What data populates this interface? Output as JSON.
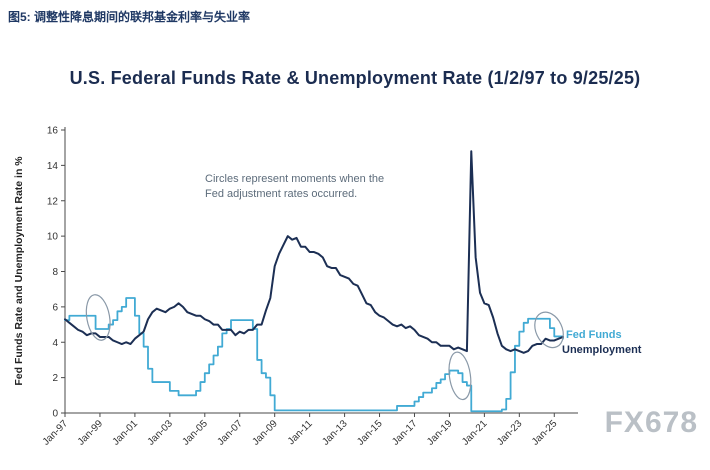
{
  "page": {
    "figure_label": "图5: 调整性降息期间的联邦基金利率与失业率",
    "watermark": "FX678"
  },
  "colors": {
    "figure_label": "#1F3864",
    "title": "#1B2C50",
    "watermark": "#A9B1B9",
    "axis": "#4A4A4A",
    "annotation_gray": "#5D6C7B",
    "circle_outline": "#8A99A8",
    "fed_funds_cyan": "#41AAD4",
    "unemployment_navy": "#1C2F54"
  },
  "chart_data": {
    "type": "line",
    "title": "U.S. Federal Funds Rate & Unemployment Rate (1/2/97 to 9/25/25)",
    "ylabel": "Fed Funds Rate and Unemployment Rate in %",
    "ylim": [
      0,
      16
    ],
    "yticks": [
      0,
      2,
      4,
      6,
      8,
      10,
      12,
      14,
      16
    ],
    "x_range": [
      1997.0,
      2025.9
    ],
    "x_start": 1997.0,
    "x_step": 0.25,
    "grid": false,
    "axis_color": "#4A4A4A",
    "circle_color": "#8A99A8",
    "xtick_years": [
      1997,
      1999,
      2001,
      2003,
      2005,
      2007,
      2009,
      2011,
      2013,
      2015,
      2017,
      2019,
      2021,
      2023,
      2025
    ],
    "xtick_labels": [
      "Jan-97",
      "Jan-99",
      "Jan-01",
      "Jan-03",
      "Jan-05",
      "Jan-07",
      "Jan-09",
      "Jan-11",
      "Jan-13",
      "Jan-15",
      "Jan-17",
      "Jan-19",
      "Jan-21",
      "Jan-23",
      "Jan-25"
    ],
    "annotation_lines": [
      "Circles represent moments when the",
      "Fed adjustment rates occurred."
    ],
    "legend_position": "right of line ends",
    "series": [
      {
        "name": "Fed Funds",
        "color": "#41AAD4",
        "step": true,
        "width": 1.8,
        "values": [
          5.25,
          5.5,
          5.5,
          5.5,
          5.5,
          5.5,
          5.5,
          4.75,
          4.75,
          4.75,
          5.0,
          5.25,
          5.75,
          6.0,
          6.5,
          6.5,
          5.5,
          4.5,
          3.75,
          2.5,
          1.75,
          1.75,
          1.75,
          1.75,
          1.25,
          1.25,
          1.0,
          1.0,
          1.0,
          1.0,
          1.25,
          1.75,
          2.25,
          2.75,
          3.25,
          3.75,
          4.5,
          4.75,
          5.25,
          5.25,
          5.25,
          5.25,
          5.25,
          4.75,
          3.0,
          2.25,
          2.0,
          1.0,
          0.15,
          0.15,
          0.15,
          0.15,
          0.15,
          0.15,
          0.15,
          0.15,
          0.15,
          0.15,
          0.15,
          0.15,
          0.15,
          0.15,
          0.15,
          0.15,
          0.15,
          0.15,
          0.15,
          0.15,
          0.15,
          0.15,
          0.15,
          0.15,
          0.15,
          0.15,
          0.15,
          0.15,
          0.4,
          0.4,
          0.4,
          0.4,
          0.65,
          0.9,
          1.15,
          1.15,
          1.4,
          1.7,
          1.9,
          2.2,
          2.4,
          2.4,
          2.25,
          1.75,
          1.55,
          0.1,
          0.1,
          0.1,
          0.1,
          0.1,
          0.1,
          0.1,
          0.2,
          0.8,
          2.3,
          3.8,
          4.6,
          5.1,
          5.33,
          5.33,
          5.33,
          5.33,
          5.33,
          4.8,
          4.33,
          4.33,
          4.2
        ]
      },
      {
        "name": "Unemployment",
        "color": "#1C2F54",
        "step": false,
        "width": 2.0,
        "values": [
          5.3,
          5.1,
          4.9,
          4.7,
          4.6,
          4.4,
          4.5,
          4.5,
          4.3,
          4.3,
          4.3,
          4.1,
          4.0,
          3.9,
          4.0,
          3.9,
          4.2,
          4.4,
          4.6,
          5.3,
          5.7,
          5.9,
          5.8,
          5.7,
          5.9,
          6.0,
          6.2,
          6.0,
          5.7,
          5.6,
          5.5,
          5.5,
          5.3,
          5.2,
          5.0,
          5.0,
          4.7,
          4.7,
          4.7,
          4.4,
          4.6,
          4.5,
          4.7,
          4.7,
          5.0,
          5.0,
          5.8,
          6.5,
          8.3,
          9.0,
          9.5,
          10.0,
          9.8,
          9.9,
          9.4,
          9.4,
          9.1,
          9.1,
          9.0,
          8.8,
          8.3,
          8.2,
          8.2,
          7.8,
          7.7,
          7.6,
          7.3,
          7.2,
          6.7,
          6.2,
          6.1,
          5.7,
          5.5,
          5.4,
          5.2,
          5.0,
          4.9,
          5.0,
          4.8,
          4.9,
          4.7,
          4.4,
          4.3,
          4.2,
          4.0,
          4.0,
          3.8,
          3.8,
          3.8,
          3.6,
          3.7,
          3.6,
          3.5,
          14.8,
          8.8,
          6.8,
          6.2,
          6.1,
          5.4,
          4.5,
          3.8,
          3.6,
          3.5,
          3.6,
          3.5,
          3.4,
          3.5,
          3.8,
          3.9,
          3.9,
          4.2,
          4.1,
          4.1,
          4.2,
          4.3
        ]
      }
    ],
    "circle_annotations": [
      {
        "x_year": 1998.9,
        "y_pct": 5.4,
        "rx_years": 0.65,
        "ry_pct": 1.3,
        "tilt_deg": -10
      },
      {
        "x_year": 2019.6,
        "y_pct": 2.1,
        "rx_years": 0.6,
        "ry_pct": 1.35,
        "tilt_deg": -8
      },
      {
        "x_year": 2024.7,
        "y_pct": 4.7,
        "rx_years": 0.75,
        "ry_pct": 1.05,
        "tilt_deg": -25
      }
    ]
  }
}
